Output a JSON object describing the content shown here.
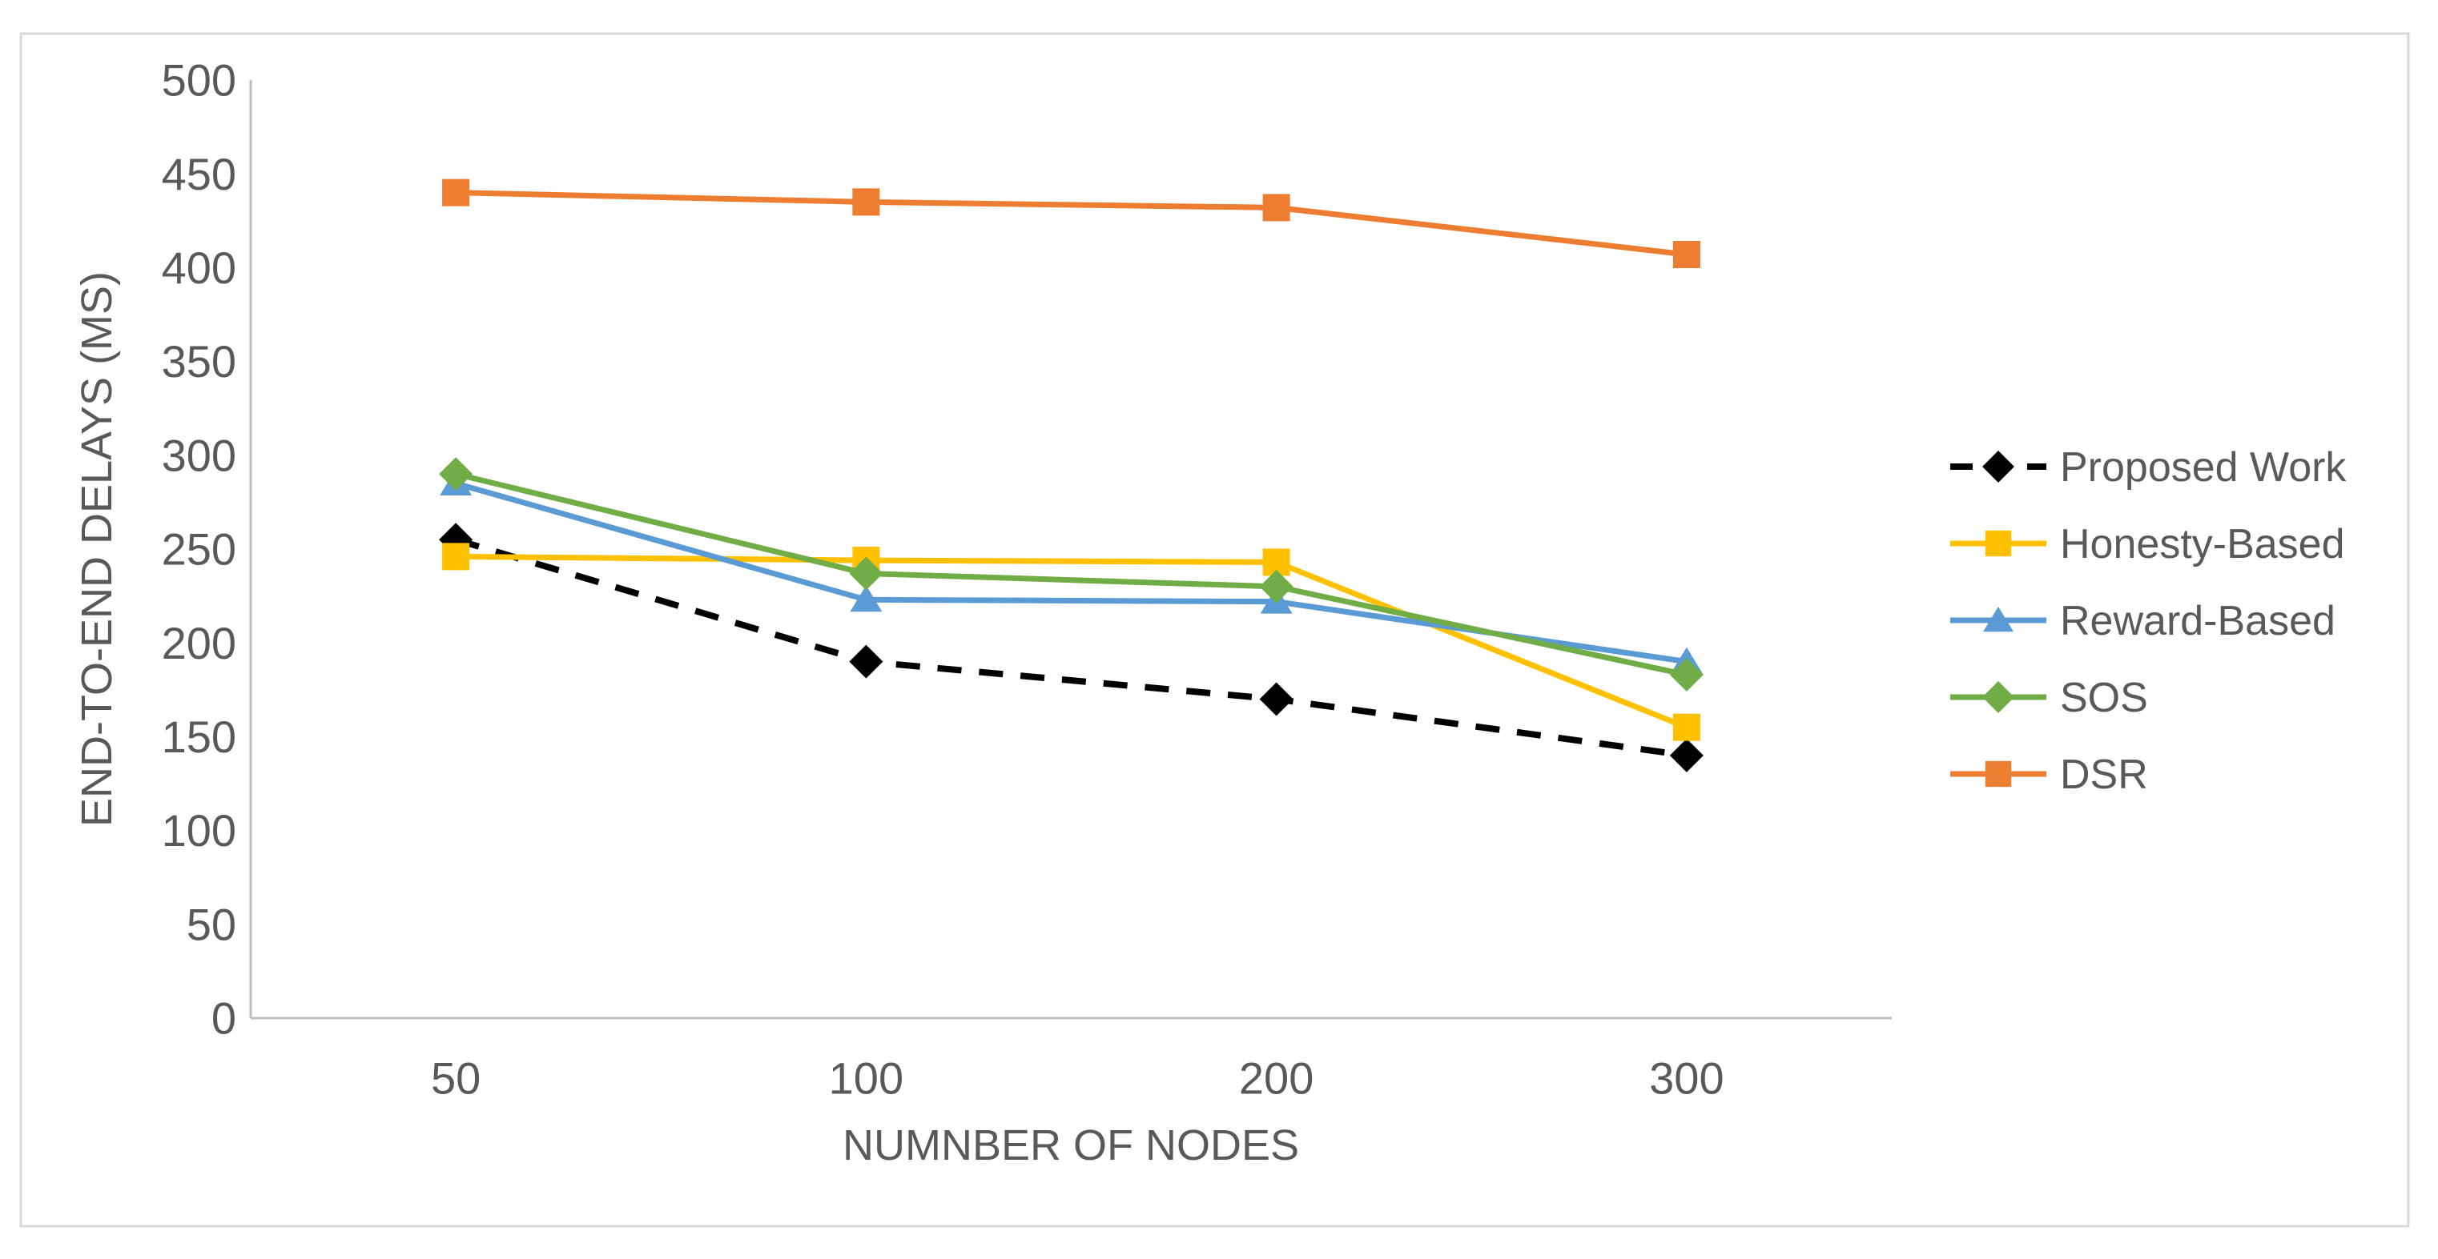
{
  "chart_data": {
    "type": "line",
    "title": "",
    "xlabel": "NUMNBER OF NODES",
    "ylabel": "END-TO-END DELAYS (MS)",
    "categories": [
      "50",
      "100",
      "200",
      "300"
    ],
    "ylim": [
      0,
      500
    ],
    "ytick_step": 50,
    "grid": false,
    "legend_position": "right",
    "series": [
      {
        "name": "Proposed Work",
        "values": [
          255,
          190,
          170,
          140
        ],
        "color": "#000000",
        "line_style": "dashed",
        "marker": "diamond"
      },
      {
        "name": "Honesty-Based",
        "values": [
          246,
          244,
          243,
          155
        ],
        "color": "#FFC000",
        "line_style": "solid",
        "marker": "square"
      },
      {
        "name": "Reward-Based",
        "values": [
          285,
          223,
          222,
          190
        ],
        "color": "#5B9BD5",
        "line_style": "solid",
        "marker": "triangle"
      },
      {
        "name": "SOS",
        "values": [
          290,
          237,
          230,
          183
        ],
        "color": "#70AD47",
        "line_style": "solid",
        "marker": "diamond"
      },
      {
        "name": "DSR",
        "values": [
          440,
          435,
          432,
          407
        ],
        "color": "#ED7D31",
        "line_style": "solid",
        "marker": "square"
      }
    ],
    "style": {
      "axis_color": "#BFBFBF",
      "frame_color": "#D9D9D9",
      "text_color": "#595959",
      "background": "#FFFFFF"
    }
  }
}
